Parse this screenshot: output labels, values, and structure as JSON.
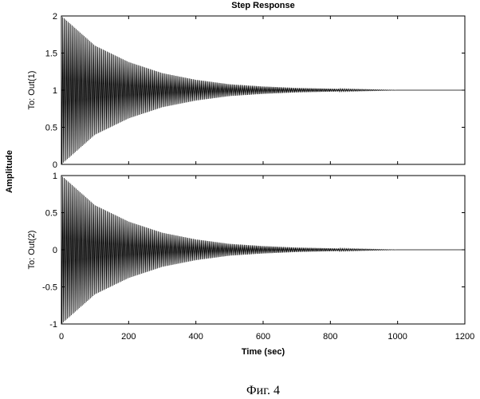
{
  "chart_data": {
    "type": "line",
    "title": "Step Response",
    "common_ylabel": "Amplitude",
    "xlabel": "Time (sec)",
    "xlim": [
      0,
      1200
    ],
    "xticks": [
      0,
      200,
      400,
      600,
      800,
      1000,
      1200
    ],
    "grid": false,
    "subplots": [
      {
        "ylabel": "To: Out(1)",
        "ylim": [
          0,
          2
        ],
        "yticks": [
          "0",
          "0.5",
          "1",
          "1.5",
          "2"
        ],
        "ytick_values": [
          0,
          0.5,
          1,
          1.5,
          2
        ],
        "series": [
          {
            "kind": "damped-oscillation",
            "final_value": 1,
            "initial_amplitude": 1,
            "x": [
              0,
              100,
              200,
              300,
              400,
              500,
              600,
              700,
              800,
              900,
              1000
            ],
            "upper_envelope": [
              2,
              1.6,
              1.38,
              1.23,
              1.14,
              1.08,
              1.05,
              1.03,
              1.02,
              1.01,
              1.0
            ],
            "lower_envelope": [
              0,
              0.4,
              0.62,
              0.77,
              0.86,
              0.92,
              0.95,
              0.97,
              0.98,
              0.99,
              1.0
            ]
          }
        ]
      },
      {
        "ylabel": "To: Out(2)",
        "ylim": [
          -1,
          1
        ],
        "yticks": [
          "-1",
          "-0.5",
          "0",
          "0.5",
          "1"
        ],
        "ytick_values": [
          -1,
          -0.5,
          0,
          0.5,
          1
        ],
        "series": [
          {
            "kind": "damped-oscillation",
            "final_value": 0,
            "initial_amplitude": 1,
            "x": [
              0,
              100,
              200,
              300,
              400,
              500,
              600,
              700,
              800,
              900,
              1000
            ],
            "upper_envelope": [
              1,
              0.6,
              0.38,
              0.23,
              0.14,
              0.08,
              0.05,
              0.03,
              0.02,
              0.01,
              0.0
            ],
            "lower_envelope": [
              -1,
              -0.6,
              -0.38,
              -0.23,
              -0.14,
              -0.08,
              -0.05,
              -0.03,
              -0.02,
              -0.01,
              0.0
            ]
          }
        ]
      }
    ]
  },
  "caption": "Фиг. 4",
  "colors": {
    "line": "#000000",
    "background": "#ffffff",
    "axes": "#000000"
  }
}
